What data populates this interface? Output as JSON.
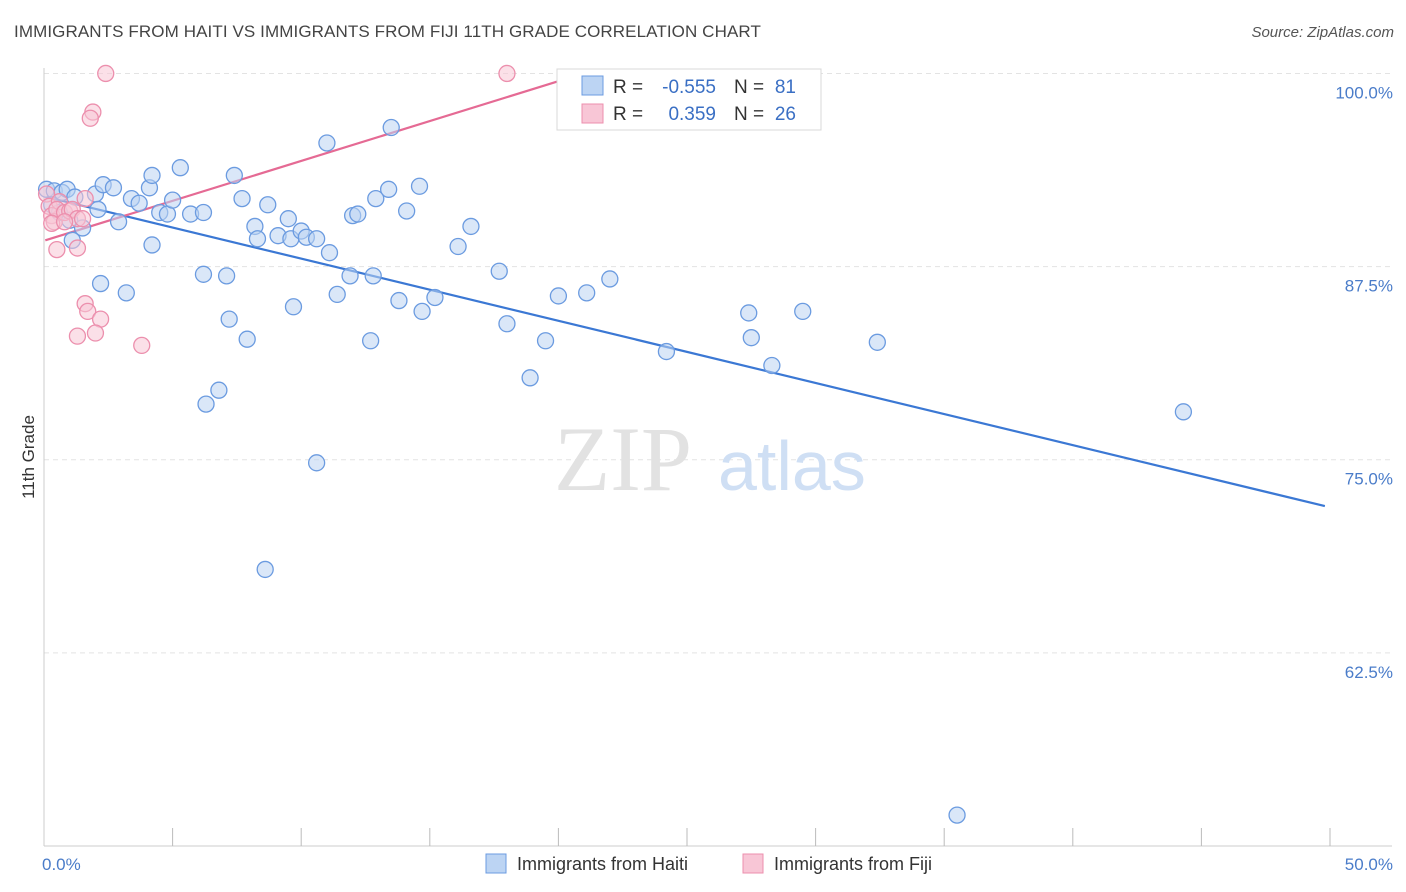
{
  "header": {
    "title": "IMMIGRANTS FROM HAITI VS IMMIGRANTS FROM FIJI 11TH GRADE CORRELATION CHART",
    "source": "Source: ZipAtlas.com"
  },
  "watermark": {
    "zip": "ZIP",
    "atlas": "atlas"
  },
  "stats": [
    {
      "r_label": "R =",
      "r_value": "-0.555",
      "n_label": "N =",
      "n_value": "81"
    },
    {
      "r_label": "R =",
      "r_value": "0.359",
      "n_label": "N =",
      "n_value": "26"
    }
  ],
  "chart_data": {
    "type": "scatter",
    "title": "IMMIGRANTS FROM HAITI VS IMMIGRANTS FROM FIJI 11TH GRADE CORRELATION CHART",
    "xlabel": "",
    "ylabel": "11th Grade",
    "xlim": [
      0,
      50
    ],
    "ylim": [
      50,
      101
    ],
    "x_tick_labels": [
      {
        "value": 0,
        "label": "0.0%"
      },
      {
        "value": 50,
        "label": "50.0%"
      }
    ],
    "y_tick_labels": [
      {
        "value": 100,
        "label": "100.0%"
      },
      {
        "value": 87.5,
        "label": "87.5%"
      },
      {
        "value": 75,
        "label": "75.0%"
      },
      {
        "value": 62.5,
        "label": "62.5%"
      }
    ],
    "grid": true,
    "legend_position": "bottom-center",
    "colors": {
      "haiti_fill": "#bcd4f3",
      "haiti_stroke": "#6b9be0",
      "haiti_line": "#3b78d4",
      "fiji_fill": "#f8c6d6",
      "fiji_stroke": "#ec8fad",
      "fiji_line": "#e56a94",
      "axis_text": "#4a7cc9"
    },
    "series": [
      {
        "name": "Immigrants from Haiti",
        "trend": {
          "x": [
            0.1,
            49.8
          ],
          "y": [
            92.0,
            72.0
          ]
        },
        "points": [
          [
            0.1,
            92.5
          ],
          [
            0.4,
            92.4
          ],
          [
            0.7,
            92.3
          ],
          [
            0.9,
            92.5
          ],
          [
            1.2,
            92.0
          ],
          [
            0.3,
            91.5
          ],
          [
            0.6,
            91.0
          ],
          [
            1.0,
            90.5
          ],
          [
            1.5,
            90.0
          ],
          [
            1.1,
            89.2
          ],
          [
            2.0,
            92.2
          ],
          [
            2.3,
            92.8
          ],
          [
            2.1,
            91.2
          ],
          [
            2.7,
            92.6
          ],
          [
            2.9,
            90.4
          ],
          [
            3.4,
            91.9
          ],
          [
            3.7,
            91.6
          ],
          [
            4.1,
            92.6
          ],
          [
            4.2,
            93.4
          ],
          [
            4.5,
            91.0
          ],
          [
            4.8,
            90.9
          ],
          [
            5.0,
            91.8
          ],
          [
            5.3,
            93.9
          ],
          [
            5.7,
            90.9
          ],
          [
            6.2,
            91.0
          ],
          [
            7.4,
            93.4
          ],
          [
            7.7,
            91.9
          ],
          [
            8.2,
            90.1
          ],
          [
            8.3,
            89.3
          ],
          [
            8.7,
            91.5
          ],
          [
            9.1,
            89.5
          ],
          [
            9.5,
            90.6
          ],
          [
            9.6,
            89.3
          ],
          [
            10.0,
            89.8
          ],
          [
            10.2,
            89.4
          ],
          [
            10.6,
            89.3
          ],
          [
            11.1,
            88.4
          ],
          [
            11.0,
            95.5
          ],
          [
            12.0,
            90.8
          ],
          [
            12.2,
            90.9
          ],
          [
            12.9,
            91.9
          ],
          [
            13.4,
            92.5
          ],
          [
            13.5,
            96.5
          ],
          [
            14.6,
            92.7
          ],
          [
            14.1,
            91.1
          ],
          [
            16.1,
            88.8
          ],
          [
            16.6,
            90.1
          ],
          [
            17.7,
            87.2
          ],
          [
            4.2,
            88.9
          ],
          [
            6.2,
            87.0
          ],
          [
            7.1,
            86.9
          ],
          [
            2.2,
            86.4
          ],
          [
            3.2,
            85.8
          ],
          [
            11.4,
            85.7
          ],
          [
            11.9,
            86.9
          ],
          [
            12.8,
            86.9
          ],
          [
            13.8,
            85.3
          ],
          [
            15.2,
            85.5
          ],
          [
            20.0,
            85.6
          ],
          [
            21.1,
            85.8
          ],
          [
            22.0,
            86.7
          ],
          [
            7.2,
            84.1
          ],
          [
            9.7,
            84.9
          ],
          [
            14.7,
            84.6
          ],
          [
            18.0,
            83.8
          ],
          [
            19.5,
            82.7
          ],
          [
            24.2,
            82.0
          ],
          [
            27.4,
            84.5
          ],
          [
            27.5,
            82.9
          ],
          [
            29.5,
            84.6
          ],
          [
            32.4,
            82.6
          ],
          [
            7.9,
            82.8
          ],
          [
            12.7,
            82.7
          ],
          [
            18.9,
            80.3
          ],
          [
            28.3,
            81.1
          ],
          [
            6.3,
            78.6
          ],
          [
            6.8,
            79.5
          ],
          [
            44.3,
            78.1
          ],
          [
            10.6,
            74.8
          ],
          [
            8.6,
            67.9
          ],
          [
            35.5,
            52.0
          ]
        ]
      },
      {
        "name": "Immigrants from Fiji",
        "trend": {
          "x": [
            0.05,
            20.0
          ],
          "y": [
            89.2,
            99.5
          ]
        },
        "points": [
          [
            2.4,
            100.0
          ],
          [
            18.0,
            100.0
          ],
          [
            1.9,
            97.5
          ],
          [
            1.8,
            97.1
          ],
          [
            0.1,
            92.2
          ],
          [
            0.2,
            91.4
          ],
          [
            0.6,
            91.7
          ],
          [
            0.3,
            90.8
          ],
          [
            0.4,
            90.4
          ],
          [
            0.5,
            91.2
          ],
          [
            0.8,
            91.0
          ],
          [
            1.0,
            91.1
          ],
          [
            1.1,
            91.2
          ],
          [
            1.3,
            90.6
          ],
          [
            1.5,
            90.6
          ],
          [
            1.6,
            91.9
          ],
          [
            0.3,
            90.3
          ],
          [
            0.8,
            90.4
          ],
          [
            0.5,
            88.6
          ],
          [
            1.3,
            88.7
          ],
          [
            1.6,
            85.1
          ],
          [
            1.7,
            84.6
          ],
          [
            2.2,
            84.1
          ],
          [
            1.3,
            83.0
          ],
          [
            2.0,
            83.2
          ],
          [
            3.8,
            82.4
          ]
        ]
      }
    ]
  },
  "legend": {
    "items": [
      "Immigrants from Haiti",
      "Immigrants from Fiji"
    ]
  }
}
